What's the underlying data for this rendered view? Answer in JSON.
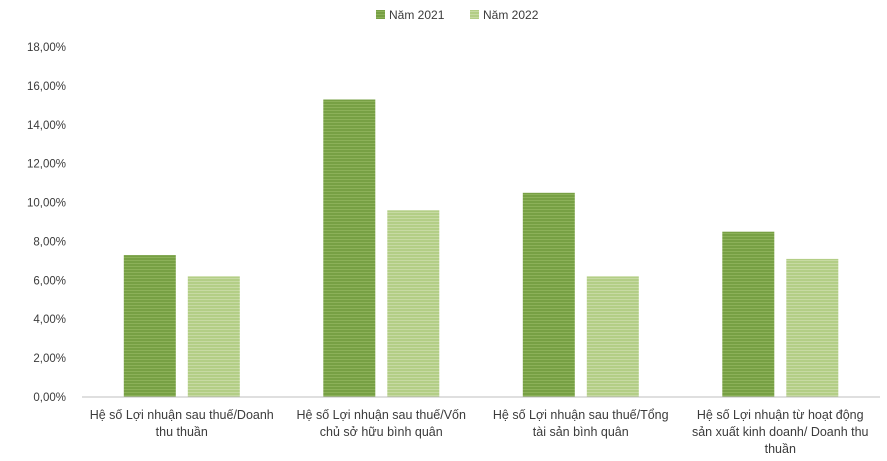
{
  "chart_data": {
    "type": "bar",
    "categories": [
      "Hệ số Lợi nhuận sau thuế/Doanh thu thuần",
      "Hệ số Lợi nhuận sau thuế/Vốn chủ sở hữu bình quân",
      "Hệ số Lợi nhuận sau thuế/Tổng tài sản bình quân",
      "Hệ số Lợi nhuận từ hoạt động sản xuất kinh doanh/ Doanh thu thuần"
    ],
    "series": [
      {
        "name": "Năm 2021",
        "values": [
          0.073,
          0.153,
          0.105,
          0.085
        ],
        "color": "#77a044"
      },
      {
        "name": "Năm 2022",
        "values": [
          0.062,
          0.096,
          0.062,
          0.071
        ],
        "color": "#b3ce86"
      }
    ],
    "ylim": [
      0,
      0.18
    ],
    "yticks": [
      "0,00%",
      "2,00%",
      "4,00%",
      "6,00%",
      "8,00%",
      "10,00%",
      "12,00%",
      "14,00%",
      "16,00%",
      "18,00%"
    ],
    "legend_position": "top-center",
    "grid": false
  }
}
